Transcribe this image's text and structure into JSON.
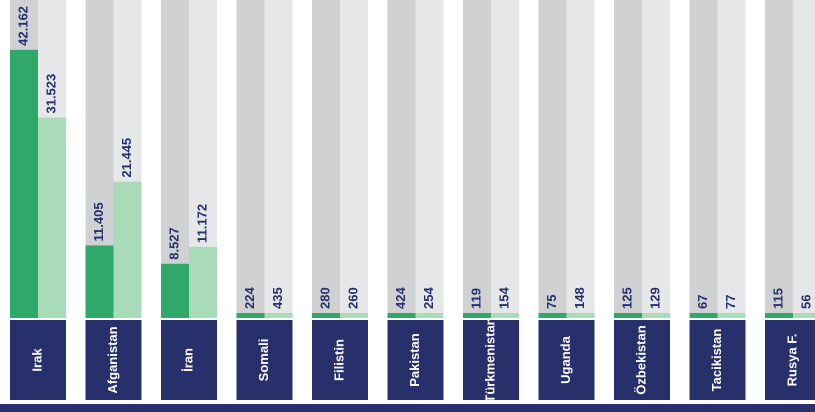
{
  "chart_data": {
    "type": "bar",
    "categories": [
      "Irak",
      "Afganistan",
      "İran",
      "Somali",
      "Filistin",
      "Pakistan",
      "Türkmenistan",
      "Uganda",
      "Özbekistan",
      "Tacikistan",
      "Rusya F."
    ],
    "series": [
      {
        "color": "#2fa86a",
        "values": [
          42162,
          11405,
          8527,
          224,
          280,
          424,
          119,
          75,
          125,
          67,
          115
        ],
        "value_labels": [
          "42.162",
          "11.405",
          "8.527",
          "224",
          "280",
          "424",
          "119",
          "75",
          "125",
          "67",
          "115"
        ]
      },
      {
        "color": "#a9dbb8",
        "values": [
          31523,
          21445,
          11172,
          435,
          260,
          254,
          154,
          148,
          129,
          77,
          56
        ],
        "value_labels": [
          "31.523",
          "21.445",
          "11.172",
          "435",
          "260",
          "254",
          "154",
          "148",
          "129",
          "77",
          "56"
        ]
      }
    ],
    "ylim": [
      0,
      50000
    ]
  }
}
